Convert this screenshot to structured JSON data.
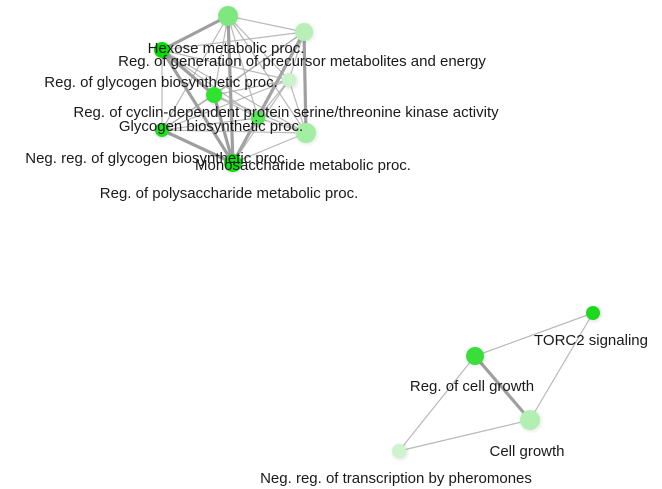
{
  "nodes": [
    {
      "id": "n_top",
      "label": "",
      "color": "#7de87d"
    },
    {
      "id": "n_topright",
      "label": "",
      "color": "#b6f0b6"
    },
    {
      "id": "n_hexose",
      "label": "Hexose metabolic proc.",
      "color": "#00e000"
    },
    {
      "id": "n_precursor",
      "label": "Reg. of generation of precursor metabolites and energy",
      "color": "#c9f3c9"
    },
    {
      "id": "n_glycogen_reg",
      "label": "Reg. of glycogen biosynthetic proc.",
      "color": "#2ee32e"
    },
    {
      "id": "n_cyclin",
      "label": "Reg. of cyclin-dependent protein serine/threonine kinase activity",
      "color": "#56e756"
    },
    {
      "id": "n_glycogen_bio",
      "label": "Glycogen biosynthetic proc.",
      "color": "#a2eea2"
    },
    {
      "id": "n_neg_glycogen",
      "label": "Neg. reg. of glycogen biosynthetic proc.",
      "color": "#20e020"
    },
    {
      "id": "n_monosacch",
      "label": "Monosaccharide metabolic proc.",
      "color": "#0ee00e"
    },
    {
      "id": "n_polysacch",
      "label": "Reg. of polysaccharide metabolic proc.",
      "color": "#33e433"
    },
    {
      "id": "n_torc2",
      "label": "TORC2 signaling",
      "color": "#1ed81e"
    },
    {
      "id": "n_cellgrowth_reg",
      "label": "Reg. of cell growth",
      "color": "#3ade3a"
    },
    {
      "id": "n_cellgrowth",
      "label": "Cell growth",
      "color": "#b2efb2"
    },
    {
      "id": "n_pheromone",
      "label": "Neg. reg. of transcription by pheromones",
      "color": "#cef4ce"
    }
  ],
  "edges": [
    [
      "n_top",
      "n_topright"
    ],
    [
      "n_top",
      "n_hexose"
    ],
    [
      "n_top",
      "n_glycogen_reg"
    ],
    [
      "n_top",
      "n_cyclin"
    ],
    [
      "n_top",
      "n_monosacch"
    ],
    [
      "n_top",
      "n_glycogen_bio"
    ],
    [
      "n_top",
      "n_neg_glycogen"
    ],
    [
      "n_top",
      "n_precursor"
    ],
    [
      "n_topright",
      "n_hexose"
    ],
    [
      "n_topright",
      "n_glycogen_bio"
    ],
    [
      "n_topright",
      "n_monosacch"
    ],
    [
      "n_topright",
      "n_cyclin"
    ],
    [
      "n_topright",
      "n_glycogen_reg"
    ],
    [
      "n_topright",
      "n_neg_glycogen"
    ],
    [
      "n_topright",
      "n_precursor"
    ],
    [
      "n_hexose",
      "n_glycogen_reg"
    ],
    [
      "n_hexose",
      "n_cyclin"
    ],
    [
      "n_hexose",
      "n_monosacch"
    ],
    [
      "n_hexose",
      "n_glycogen_bio"
    ],
    [
      "n_hexose",
      "n_neg_glycogen"
    ],
    [
      "n_hexose",
      "n_precursor"
    ],
    [
      "n_glycogen_reg",
      "n_cyclin"
    ],
    [
      "n_glycogen_reg",
      "n_monosacch"
    ],
    [
      "n_glycogen_reg",
      "n_glycogen_bio"
    ],
    [
      "n_glycogen_reg",
      "n_neg_glycogen"
    ],
    [
      "n_glycogen_reg",
      "n_precursor"
    ],
    [
      "n_cyclin",
      "n_monosacch"
    ],
    [
      "n_cyclin",
      "n_glycogen_bio"
    ],
    [
      "n_cyclin",
      "n_neg_glycogen"
    ],
    [
      "n_cyclin",
      "n_precursor"
    ],
    [
      "n_monosacch",
      "n_glycogen_bio"
    ],
    [
      "n_monosacch",
      "n_neg_glycogen"
    ],
    [
      "n_monosacch",
      "n_precursor"
    ],
    [
      "n_glycogen_bio",
      "n_neg_glycogen"
    ],
    [
      "n_glycogen_bio",
      "n_precursor"
    ],
    [
      "n_neg_glycogen",
      "n_precursor"
    ],
    [
      "n_torc2",
      "n_cellgrowth_reg"
    ],
    [
      "n_torc2",
      "n_cellgrowth"
    ],
    [
      "n_cellgrowth_reg",
      "n_cellgrowth"
    ],
    [
      "n_cellgrowth_reg",
      "n_pheromone"
    ],
    [
      "n_cellgrowth",
      "n_pheromone"
    ]
  ]
}
